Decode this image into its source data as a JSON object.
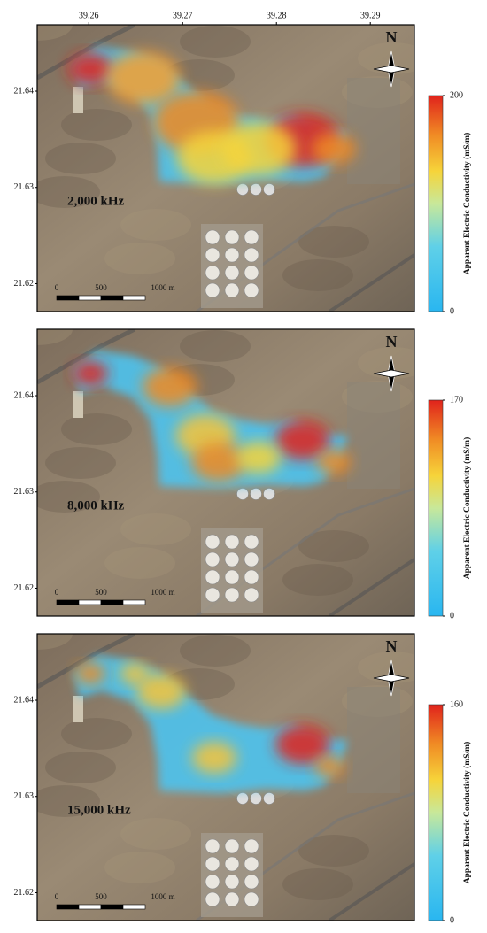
{
  "map": {
    "xlim": [
      39.2545,
      39.2947
    ],
    "ylim": [
      21.6171,
      21.6469
    ],
    "xticks": [
      39.26,
      39.27,
      39.28,
      39.29
    ],
    "yticks": [
      21.62,
      21.63,
      21.64
    ],
    "north_label": "N",
    "scale_bar_labels": [
      "0",
      "500",
      "1000 m"
    ],
    "colorbar_title": "Apparent Electric Conductivity (mS/m)",
    "panels": [
      {
        "label": "2,000 kHz",
        "colorbar_ticks": [
          0,
          200
        ]
      },
      {
        "label": "8,000 kHz",
        "colorbar_ticks": [
          0,
          170
        ]
      },
      {
        "label": "15,000 kHz",
        "colorbar_ticks": [
          0,
          160
        ]
      }
    ]
  }
}
